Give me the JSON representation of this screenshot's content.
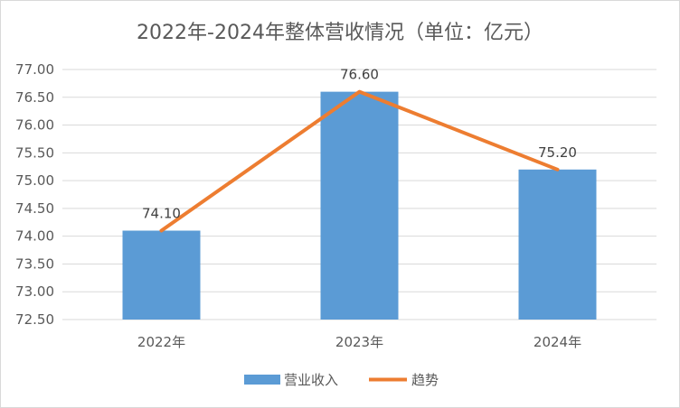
{
  "chart_data": {
    "type": "bar",
    "title": "2022年-2024年整体营收情况（单位：亿元）",
    "categories": [
      "2022年",
      "2023年",
      "2024年"
    ],
    "series": [
      {
        "name": "营业收入",
        "type": "bar",
        "values": [
          74.1,
          76.6,
          75.2
        ],
        "color": "#5b9bd5"
      },
      {
        "name": "趋势",
        "type": "line",
        "values": [
          74.1,
          76.6,
          75.2
        ],
        "color": "#ed7d31"
      }
    ],
    "data_labels": [
      "74.10",
      "76.60",
      "75.20"
    ],
    "ylim": [
      72.5,
      77.0
    ],
    "ytick_labels": [
      "72.50",
      "73.00",
      "73.50",
      "74.00",
      "74.50",
      "75.00",
      "75.50",
      "76.00",
      "76.50",
      "77.00"
    ],
    "grid": true,
    "legend_position": "bottom",
    "colors": {
      "gridline": "#d9d9d9",
      "text": "#595959"
    }
  }
}
